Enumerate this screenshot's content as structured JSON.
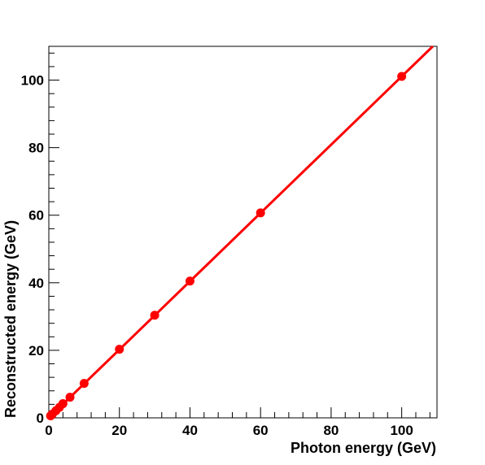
{
  "chart_data": {
    "type": "scatter",
    "xlabel": "Photon energy (GeV)",
    "ylabel": "Reconstructed energy (GeV)",
    "xlim": [
      0,
      110
    ],
    "ylim": [
      0,
      110
    ],
    "x_ticks": [
      0,
      20,
      40,
      60,
      80,
      100
    ],
    "y_ticks": [
      0,
      20,
      40,
      60,
      80,
      100
    ],
    "grid": false,
    "series": [
      {
        "color": "#ff0000",
        "marker": "circle",
        "x": [
          0.5,
          1,
          2,
          3,
          4,
          6,
          10,
          20,
          30,
          40,
          60,
          100
        ],
        "y": [
          0.6,
          1.1,
          2.1,
          3.1,
          4.2,
          6.1,
          10.2,
          20.3,
          30.4,
          40.5,
          60.7,
          101.1
        ]
      }
    ],
    "fit_line": {
      "color": "#ff0000",
      "x": [
        0,
        110
      ],
      "y": [
        0,
        111.2
      ]
    }
  }
}
